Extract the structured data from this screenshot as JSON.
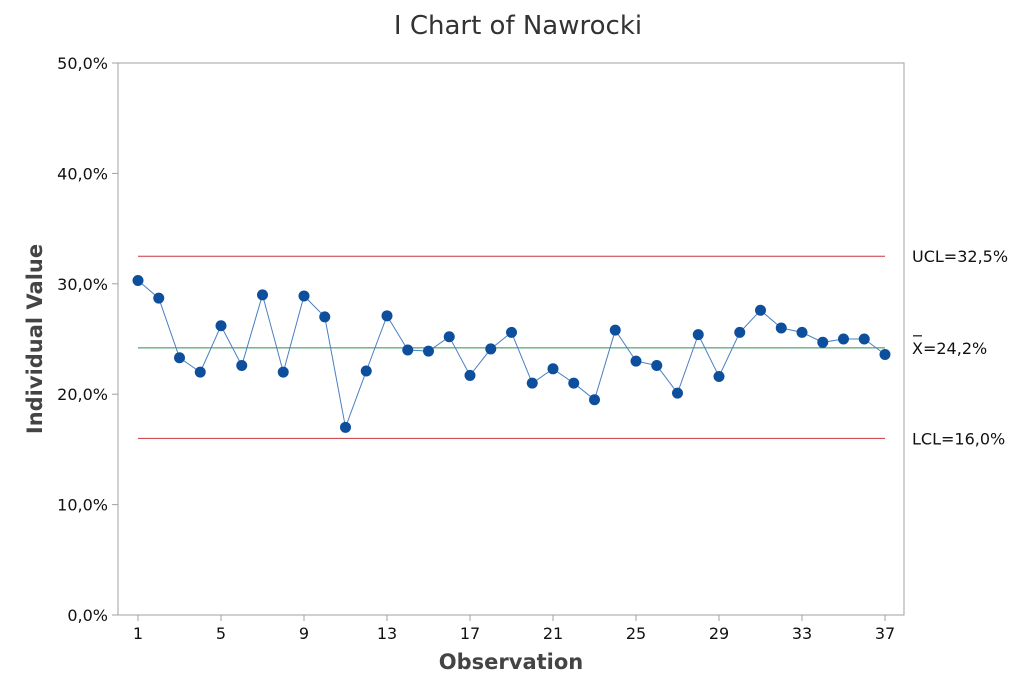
{
  "chart_data": {
    "type": "line",
    "title": "I Chart of Nawrocki",
    "xlabel": "Observation",
    "ylabel": "Individual Value",
    "xlim": [
      1,
      37
    ],
    "ylim": [
      0,
      50
    ],
    "y_ticks": [
      {
        "value": 0,
        "label": "0,0%"
      },
      {
        "value": 10,
        "label": "10,0%"
      },
      {
        "value": 20,
        "label": "20,0%"
      },
      {
        "value": 30,
        "label": "30,0%"
      },
      {
        "value": 40,
        "label": "40,0%"
      },
      {
        "value": 50,
        "label": "50,0%"
      }
    ],
    "x_ticks": [
      {
        "value": 1,
        "label": "1"
      },
      {
        "value": 5,
        "label": "5"
      },
      {
        "value": 9,
        "label": "9"
      },
      {
        "value": 13,
        "label": "13"
      },
      {
        "value": 17,
        "label": "17"
      },
      {
        "value": 21,
        "label": "21"
      },
      {
        "value": 25,
        "label": "25"
      },
      {
        "value": 29,
        "label": "29"
      },
      {
        "value": 33,
        "label": "33"
      },
      {
        "value": 37,
        "label": "37"
      }
    ],
    "x": [
      1,
      2,
      3,
      4,
      5,
      6,
      7,
      8,
      9,
      10,
      11,
      12,
      13,
      14,
      15,
      16,
      17,
      18,
      19,
      20,
      21,
      22,
      23,
      24,
      25,
      26,
      27,
      28,
      29,
      30,
      31,
      32,
      33,
      34,
      35,
      36,
      37
    ],
    "values": [
      30.3,
      28.7,
      23.3,
      22.0,
      26.2,
      22.6,
      29.0,
      22.0,
      28.9,
      27.0,
      17.0,
      22.1,
      27.1,
      24.0,
      23.9,
      25.2,
      21.7,
      24.1,
      25.6,
      21.0,
      22.3,
      21.0,
      19.5,
      25.8,
      23.0,
      22.6,
      20.1,
      25.4,
      21.6,
      25.6,
      27.6,
      26.0,
      25.6,
      24.7,
      25.0,
      25.0,
      23.6
    ],
    "reference_lines": [
      {
        "name": "UCL",
        "value": 32.5,
        "label": "UCL=32,5%",
        "color": "#c8373c"
      },
      {
        "name": "mean",
        "value": 24.2,
        "label": "X=24,2%",
        "color": "#2e8b57"
      },
      {
        "name": "LCL",
        "value": 16.0,
        "label": "LCL=16,0%",
        "color": "#c8373c"
      }
    ],
    "colors": {
      "line": "#4a7fc1",
      "marker": "#0d4f9c",
      "frame": "#a0a0a0"
    },
    "grid": false,
    "legend": "none"
  }
}
